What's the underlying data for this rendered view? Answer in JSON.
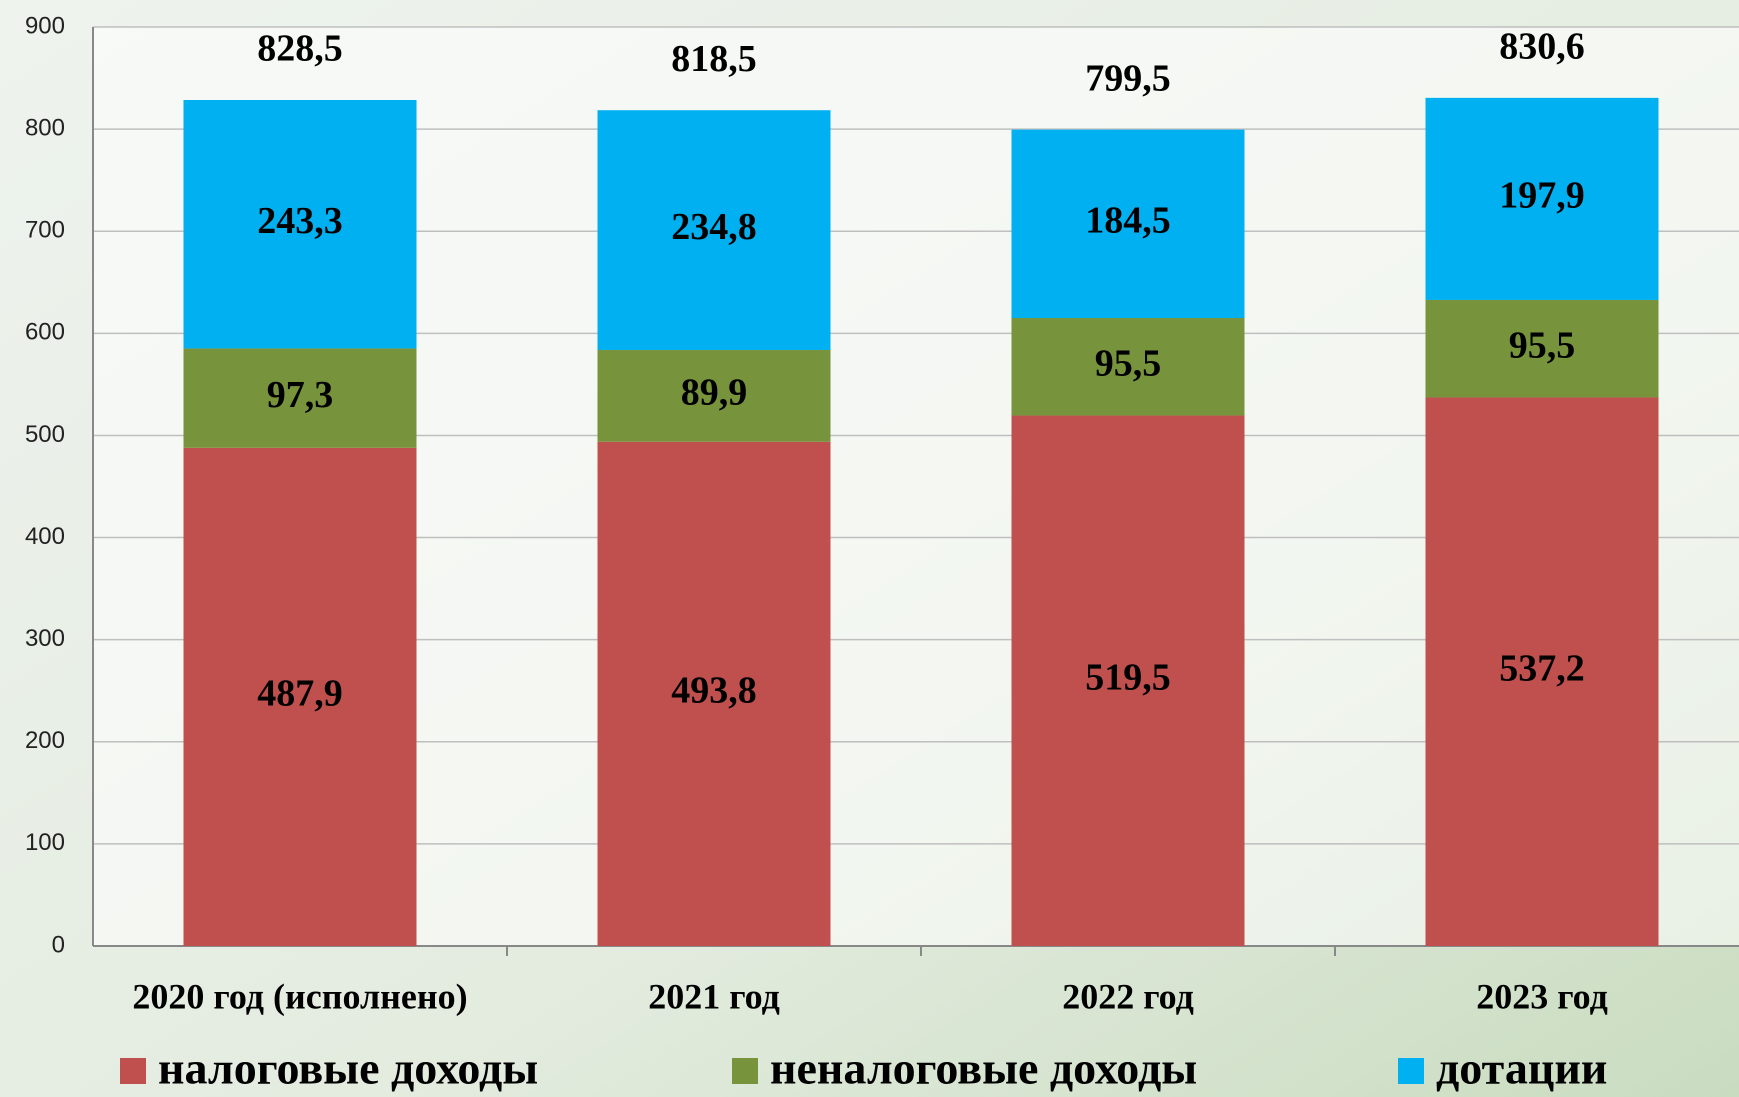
{
  "chart_data": {
    "type": "stacked_bar",
    "categories": [
      "2020 год  (исполнено)",
      "2021 год",
      "2022 год",
      "2023 год"
    ],
    "series": [
      {
        "name": "налоговые доходы",
        "color": "#c0504d",
        "values": [
          487.9,
          493.8,
          519.5,
          537.2
        ],
        "value_labels": [
          "487,9",
          "493,8",
          "519,5",
          "537,2"
        ]
      },
      {
        "name": "неналоговые доходы",
        "color": "#77933c",
        "values": [
          97.3,
          89.9,
          95.5,
          95.5
        ],
        "value_labels": [
          "97,3",
          "89,9",
          "95,5",
          "95,5"
        ]
      },
      {
        "name": "дотации",
        "color": "#00b0f0",
        "values": [
          243.3,
          234.8,
          184.5,
          197.9
        ],
        "value_labels": [
          "243,3",
          "234,8",
          "184,5",
          "197,9"
        ]
      }
    ],
    "totals": [
      828.5,
      818.5,
      799.5,
      830.6
    ],
    "total_labels": [
      "828,5",
      "818,5",
      "799,5",
      "830,6"
    ],
    "ylim": [
      0,
      900
    ],
    "yticks": [
      0,
      100,
      200,
      300,
      400,
      500,
      600,
      700,
      800,
      900
    ],
    "grid": true
  }
}
